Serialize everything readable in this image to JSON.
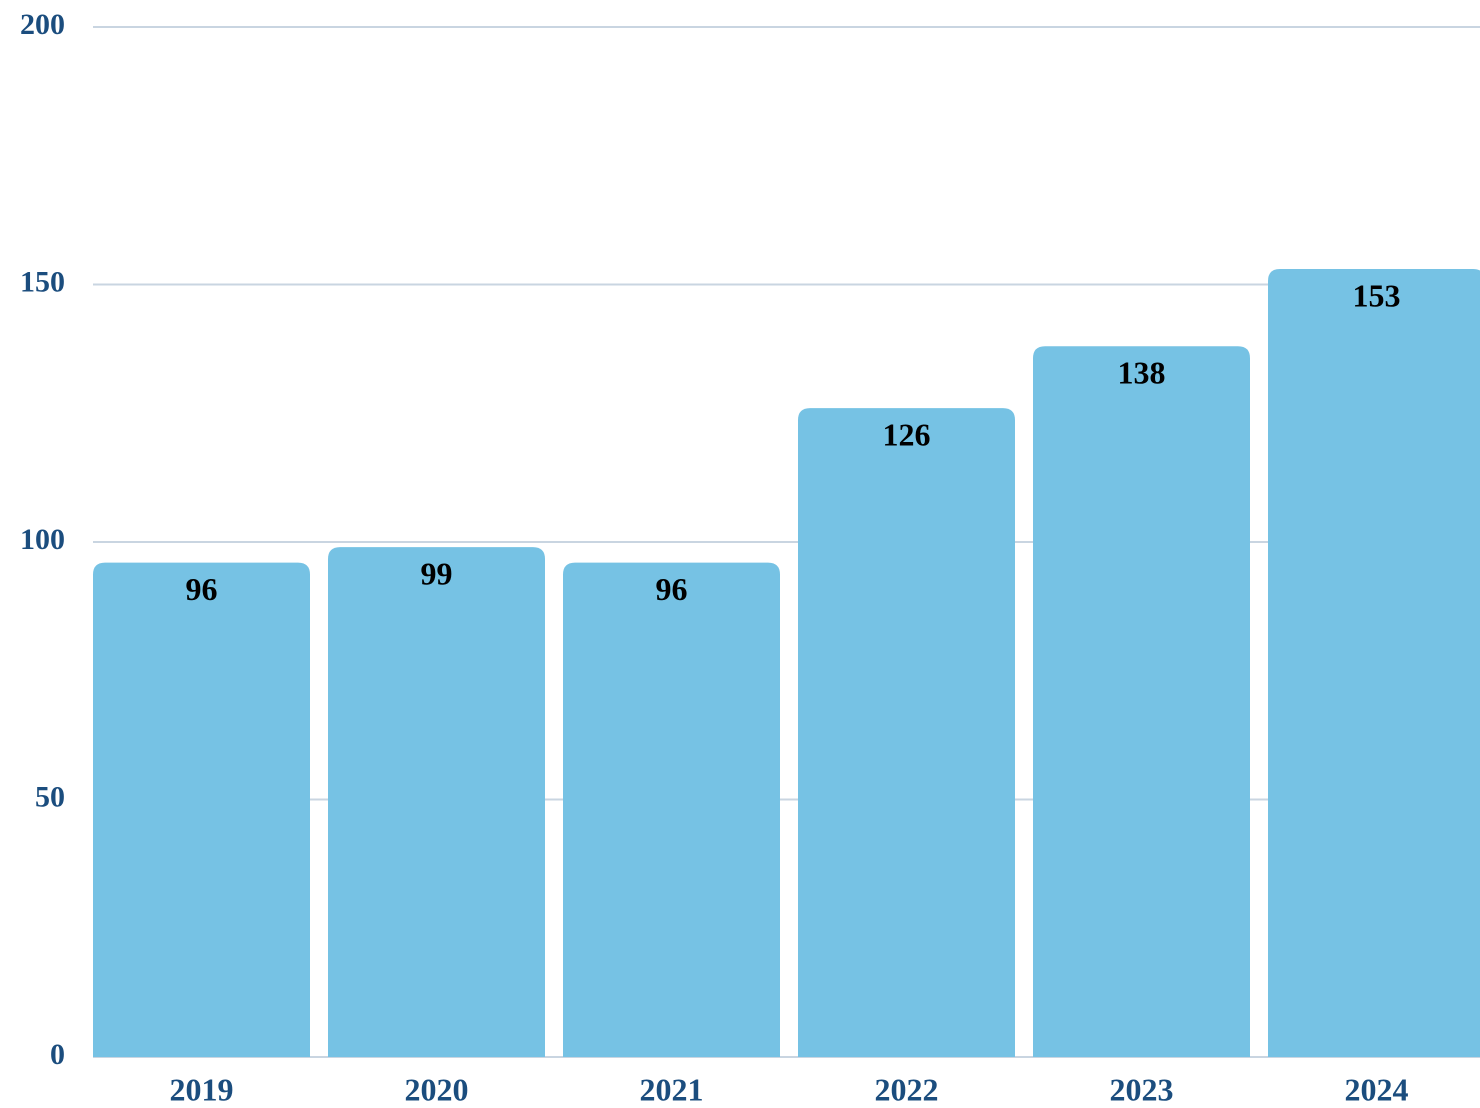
{
  "chart_data": {
    "type": "bar",
    "categories": [
      "2019",
      "2020",
      "2021",
      "2022",
      "2023",
      "2024"
    ],
    "values": [
      96,
      99,
      96,
      126,
      138,
      153
    ],
    "color": "#76c2e4",
    "ylim": [
      0,
      200
    ],
    "yticks": [
      0,
      50,
      100,
      150,
      200
    ],
    "grid": true
  }
}
